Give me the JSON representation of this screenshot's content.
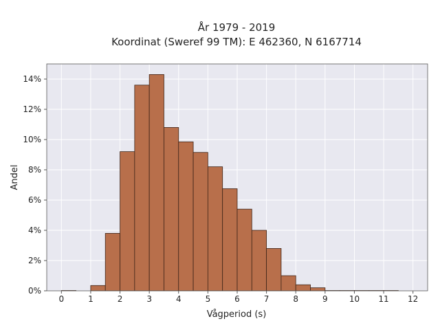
{
  "chart_data": {
    "type": "bar",
    "title_line1": "År 1979 - 2019",
    "title_line2": "Koordinat (Sweref 99 TM): E 462360, N 6167714",
    "xlabel": "Vågperiod (s)",
    "ylabel": "Andel",
    "xlim": [
      -0.5,
      12.5
    ],
    "ylim": [
      0,
      0.15
    ],
    "xticks": [
      0,
      1,
      2,
      3,
      4,
      5,
      6,
      7,
      8,
      9,
      10,
      11,
      12
    ],
    "xtick_labels": [
      "0",
      "1",
      "2",
      "3",
      "4",
      "5",
      "6",
      "7",
      "8",
      "9",
      "10",
      "11",
      "12"
    ],
    "yticks": [
      0,
      0.02,
      0.04,
      0.06,
      0.08,
      0.1,
      0.12,
      0.14
    ],
    "ytick_labels": [
      "0%",
      "2%",
      "4%",
      "6%",
      "8%",
      "10%",
      "12%",
      "14%"
    ],
    "grid": true,
    "bin_width": 0.5,
    "bins": [
      {
        "x0": 0.0,
        "value": 0.0002
      },
      {
        "x0": 0.5,
        "value": 0.0
      },
      {
        "x0": 1.0,
        "value": 0.0035
      },
      {
        "x0": 1.5,
        "value": 0.038
      },
      {
        "x0": 2.0,
        "value": 0.092
      },
      {
        "x0": 2.5,
        "value": 0.136
      },
      {
        "x0": 3.0,
        "value": 0.143
      },
      {
        "x0": 3.5,
        "value": 0.108
      },
      {
        "x0": 4.0,
        "value": 0.0985
      },
      {
        "x0": 4.5,
        "value": 0.0915
      },
      {
        "x0": 5.0,
        "value": 0.082
      },
      {
        "x0": 5.5,
        "value": 0.0675
      },
      {
        "x0": 6.0,
        "value": 0.054
      },
      {
        "x0": 6.5,
        "value": 0.04
      },
      {
        "x0": 7.0,
        "value": 0.028
      },
      {
        "x0": 7.5,
        "value": 0.01
      },
      {
        "x0": 8.0,
        "value": 0.004
      },
      {
        "x0": 8.5,
        "value": 0.002
      },
      {
        "x0": 9.0,
        "value": 0.0002
      },
      {
        "x0": 9.5,
        "value": 0.0002
      },
      {
        "x0": 10.0,
        "value": 0.0002
      },
      {
        "x0": 10.5,
        "value": 0.0002
      },
      {
        "x0": 11.0,
        "value": 0.0002
      }
    ],
    "colors": {
      "bar_fill": "#b86f4b",
      "bar_stroke": "#3d2418",
      "plot_bg": "#e8e8f0",
      "grid": "#ffffff",
      "frame": "#555555"
    }
  }
}
